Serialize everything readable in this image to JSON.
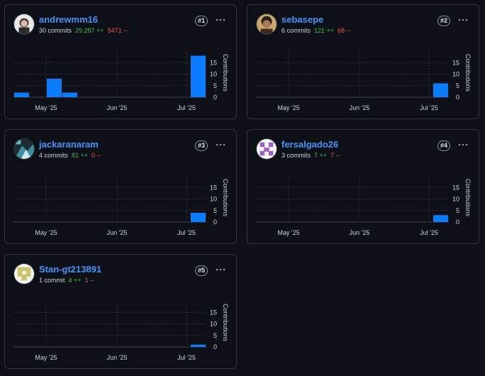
{
  "chart_common": {
    "x_labels": [
      "May '25",
      "Jun '25",
      "Jul '25"
    ],
    "y_ticks": [
      0,
      5,
      10,
      15
    ],
    "y_max": 20,
    "y_axis_label": "Contributions"
  },
  "colors": {
    "bar": "#0a7cff",
    "username": "#4493f8",
    "additions": "#3fb950",
    "deletions": "#f85149"
  },
  "contributors": [
    {
      "username": "andrewmm16",
      "rank": "#1",
      "commits": "30 commits",
      "additions": "29.287 ++",
      "deletions": "5471 --",
      "avatar": "avatar-photo-white",
      "chart_data": {
        "type": "bar",
        "y_axis_label": "Contributions",
        "x_tick_labels": [
          "May '25",
          "Jun '25",
          "Jul '25"
        ],
        "y_ticks": [
          0,
          5,
          10,
          15
        ],
        "y_range": [
          0,
          20
        ],
        "bars": [
          {
            "week": "late Apr '25",
            "value": 2
          },
          {
            "week": "mid May '25",
            "value": 8
          },
          {
            "week": "late May '25",
            "value": 2
          },
          {
            "week": "late Jul '25",
            "value": 18
          }
        ]
      }
    },
    {
      "username": "sebasepe",
      "rank": "#2",
      "commits": "6 commits",
      "additions": "121 ++",
      "deletions": "68 --",
      "avatar": "avatar-photo-person",
      "chart_data": {
        "type": "bar",
        "y_axis_label": "Contributions",
        "x_tick_labels": [
          "May '25",
          "Jun '25",
          "Jul '25"
        ],
        "y_ticks": [
          0,
          5,
          10,
          15
        ],
        "y_range": [
          0,
          20
        ],
        "bars": [
          {
            "week": "late Jul '25",
            "value": 6
          }
        ]
      }
    },
    {
      "username": "jackaranaram",
      "rank": "#3",
      "commits": "4 commits",
      "additions": "81 ++",
      "deletions": "0 --",
      "avatar": "avatar-photo-teal",
      "chart_data": {
        "type": "bar",
        "y_axis_label": "Contributions",
        "x_tick_labels": [
          "May '25",
          "Jun '25",
          "Jul '25"
        ],
        "y_ticks": [
          0,
          5,
          10,
          15
        ],
        "y_range": [
          0,
          20
        ],
        "bars": [
          {
            "week": "late Jul '25",
            "value": 4
          }
        ]
      }
    },
    {
      "username": "fersalgado26",
      "rank": "#4",
      "commits": "3 commits",
      "additions": "7 ++",
      "deletions": "7 --",
      "avatar": "avatar-identicon-purple",
      "chart_data": {
        "type": "bar",
        "y_axis_label": "Contributions",
        "x_tick_labels": [
          "May '25",
          "Jun '25",
          "Jul '25"
        ],
        "y_ticks": [
          0,
          5,
          10,
          15
        ],
        "y_range": [
          0,
          20
        ],
        "bars": [
          {
            "week": "late Jul '25",
            "value": 3
          }
        ]
      }
    },
    {
      "username": "Stan-gt213891",
      "rank": "#5",
      "commits": "1 commit",
      "additions": "4 ++",
      "deletions": "1 --",
      "avatar": "avatar-identicon-olive",
      "chart_data": {
        "type": "bar",
        "y_axis_label": "Contributions",
        "x_tick_labels": [
          "May '25",
          "Jun '25",
          "Jul '25"
        ],
        "y_ticks": [
          0,
          5,
          10,
          15
        ],
        "y_range": [
          0,
          20
        ],
        "bars": [
          {
            "week": "late Jul '25",
            "value": 1
          }
        ]
      }
    }
  ]
}
